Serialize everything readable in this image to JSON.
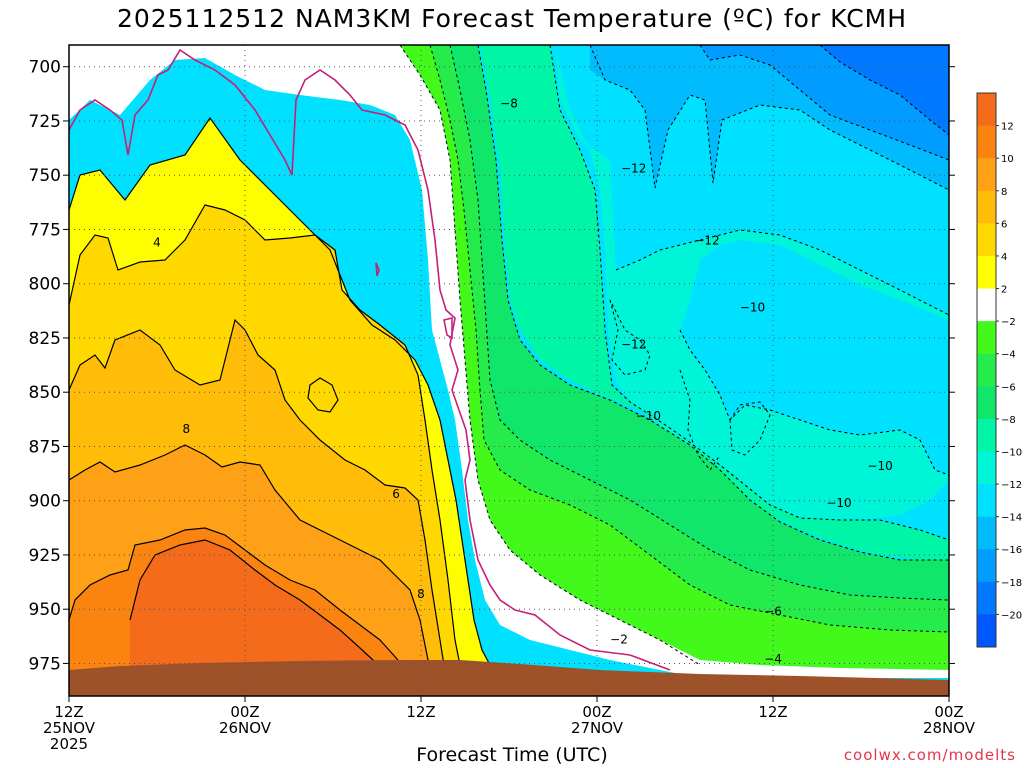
{
  "chart_data": {
    "type": "heatmap",
    "title": "2025112512 NAM3KM Forecast Temperature (ºC) for KCMH",
    "xlabel": "Forecast Time (UTC)",
    "ylabel": "",
    "y_axis": {
      "unit": "hPa",
      "range": [
        990,
        690
      ],
      "inverted": true,
      "ticks": [
        700,
        725,
        750,
        775,
        800,
        825,
        850,
        875,
        900,
        925,
        950,
        975
      ]
    },
    "x_axis": {
      "unit": "hours since 2025-11-25 12Z",
      "range": [
        0,
        60
      ],
      "ticks": [
        {
          "h": 0,
          "l1": "12Z",
          "l2": "25NOV",
          "l3": "2025"
        },
        {
          "h": 12,
          "l1": "00Z",
          "l2": "26NOV",
          "l3": ""
        },
        {
          "h": 24,
          "l1": "12Z",
          "l2": "",
          "l3": ""
        },
        {
          "h": 36,
          "l1": "00Z",
          "l2": "27NOV",
          "l3": ""
        },
        {
          "h": 48,
          "l1": "12Z",
          "l2": "",
          "l3": ""
        },
        {
          "h": 60,
          "l1": "00Z",
          "l2": "28NOV",
          "l3": ""
        }
      ]
    },
    "colorbar": {
      "labels": [
        "12",
        "10",
        "8",
        "6",
        "4",
        "2",
        "−2",
        "−4",
        "−6",
        "−8",
        "−10",
        "−12",
        "−14",
        "−16",
        "−18",
        "−20"
      ],
      "bands": [
        {
          "min": 12,
          "max": 14,
          "color": "#f36b1b"
        },
        {
          "min": 10,
          "max": 12,
          "color": "#fb8411"
        },
        {
          "min": 8,
          "max": 10,
          "color": "#ffa117"
        },
        {
          "min": 6,
          "max": 8,
          "color": "#ffbd0a"
        },
        {
          "min": 4,
          "max": 6,
          "color": "#ffd800"
        },
        {
          "min": 2,
          "max": 4,
          "color": "#fffe00"
        },
        {
          "min": -2,
          "max": 2,
          "color": "#ffffff"
        },
        {
          "min": -4,
          "max": -2,
          "color": "#42f91b"
        },
        {
          "min": -6,
          "max": -4,
          "color": "#25ec4a"
        },
        {
          "min": -8,
          "max": -6,
          "color": "#10e669"
        },
        {
          "min": -10,
          "max": -8,
          "color": "#00f5a6"
        },
        {
          "min": -12,
          "max": -10,
          "color": "#00f5d8"
        },
        {
          "min": -14,
          "max": -12,
          "color": "#00e1ff"
        },
        {
          "min": -16,
          "max": -14,
          "color": "#00bcff"
        },
        {
          "min": -18,
          "max": -16,
          "color": "#009cff"
        },
        {
          "min": -20,
          "max": -18,
          "color": "#0078ff"
        },
        {
          "min": -22,
          "max": -20,
          "color": "#0056ff"
        }
      ]
    },
    "contour_labels": [
      {
        "text": "4",
        "h": 6.0,
        "p": 781
      },
      {
        "text": "8",
        "h": 8.0,
        "p": 867
      },
      {
        "text": "6",
        "h": 22.3,
        "p": 897
      },
      {
        "text": "8",
        "h": 24.0,
        "p": 943
      },
      {
        "text": "−8",
        "h": 30.0,
        "p": 717
      },
      {
        "text": "−12",
        "h": 38.5,
        "p": 747
      },
      {
        "text": "−12",
        "h": 43.5,
        "p": 780
      },
      {
        "text": "−10",
        "h": 46.6,
        "p": 811
      },
      {
        "text": "−12",
        "h": 38.5,
        "p": 828
      },
      {
        "text": "−10",
        "h": 39.5,
        "p": 861
      },
      {
        "text": "−10",
        "h": 55.3,
        "p": 884
      },
      {
        "text": "−10",
        "h": 52.5,
        "p": 901
      },
      {
        "text": "−6",
        "h": 48.0,
        "p": 951
      },
      {
        "text": "−4",
        "h": 48.0,
        "p": 973
      },
      {
        "text": "−2",
        "h": 37.5,
        "p": 964
      }
    ],
    "terrain_color": "#9e522a"
  },
  "credit": "coolwx.com/modelts"
}
